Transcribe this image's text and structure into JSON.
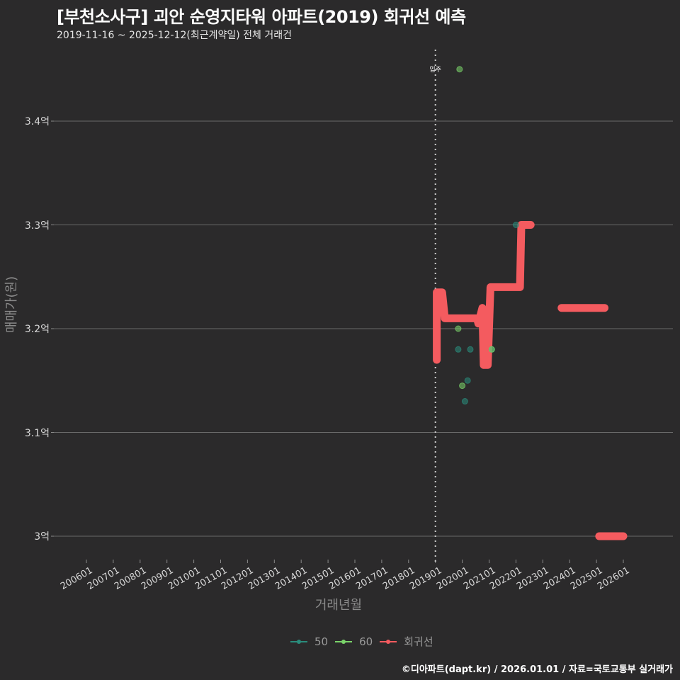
{
  "header": {
    "title": "[부천소사구] 괴안 순영지타워 아파트(2019) 회귀선 예측",
    "subtitle": "2019-11-16 ~ 2025-12-12(최근계약일) 전체 거래건"
  },
  "axes": {
    "ylabel": "매매가(원)",
    "xlabel": "거래년월",
    "yticks": [
      {
        "label": "3.4억",
        "value": 3.4
      },
      {
        "label": "3.3억",
        "value": 3.3
      },
      {
        "label": "3.2억",
        "value": 3.2
      },
      {
        "label": "3.1억",
        "value": 3.1
      },
      {
        "label": "3억",
        "value": 3.0
      }
    ],
    "xticks": [
      "200601",
      "200701",
      "200801",
      "200901",
      "201001",
      "201101",
      "201201",
      "201301",
      "201401",
      "201501",
      "201601",
      "201701",
      "201801",
      "201901",
      "202001",
      "202101",
      "202201",
      "202301",
      "202401",
      "202501",
      "202601"
    ]
  },
  "annotation": {
    "label": "입주",
    "x": 2019.0
  },
  "legend": [
    {
      "label": "50",
      "color": "#2a8c7c"
    },
    {
      "label": "60",
      "color": "#7ad36a"
    },
    {
      "label": "회귀선",
      "color": "#f45b5f"
    }
  ],
  "caption": "©디아파트(dapt.kr) / 2026.01.01 / 자료=국토교통부 실거래가",
  "chart_data": {
    "type": "scatter",
    "title": "[부천소사구] 괴안 순영지타워 아파트(2019) 회귀선 예측",
    "subtitle": "2019-11-16 ~ 2025-12-12(최근계약일) 전체 거래건",
    "xlabel": "거래년월",
    "ylabel": "매매가(원)",
    "xlim": [
      2005.4,
      2027.2
    ],
    "ylim": [
      2.98,
      3.46
    ],
    "y_unit": "억",
    "grid": true,
    "legend_position": "bottom",
    "vline": {
      "x": 2019.0,
      "label": "입주",
      "style": "dotted"
    },
    "series": [
      {
        "name": "50",
        "type": "scatter",
        "color": "#2a8c7c",
        "points": [
          [
            2019.85,
            3.18
          ],
          [
            2020.1,
            3.13
          ],
          [
            2020.2,
            3.15
          ],
          [
            2020.3,
            3.18
          ],
          [
            2021.1,
            3.18
          ],
          [
            2022.0,
            3.3
          ]
        ]
      },
      {
        "name": "60",
        "type": "scatter",
        "color": "#7ad36a",
        "points": [
          [
            2019.9,
            3.45
          ],
          [
            2019.85,
            3.2
          ],
          [
            2021.1,
            3.18
          ],
          [
            2020.0,
            3.145
          ]
        ]
      },
      {
        "name": "회귀선",
        "type": "line",
        "color": "#f45b5f",
        "points": [
          [
            2019.05,
            3.17
          ],
          [
            2019.05,
            3.235
          ],
          [
            2019.25,
            3.235
          ],
          [
            2019.35,
            3.21
          ],
          [
            2020.55,
            3.21
          ],
          [
            2020.6,
            3.205
          ],
          [
            2020.75,
            3.22
          ],
          [
            2020.8,
            3.165
          ],
          [
            2020.95,
            3.165
          ],
          [
            2021.05,
            3.24
          ],
          [
            2022.15,
            3.24
          ],
          [
            2022.2,
            3.3
          ],
          [
            2022.55,
            3.3
          ]
        ]
      },
      {
        "name": "회귀선-2",
        "type": "line",
        "color": "#f45b5f",
        "points": [
          [
            2023.7,
            3.22
          ],
          [
            2025.3,
            3.22
          ]
        ]
      },
      {
        "name": "회귀선-3",
        "type": "line",
        "color": "#f45b5f",
        "points": [
          [
            2025.1,
            3.0
          ],
          [
            2026.0,
            3.0
          ]
        ]
      }
    ]
  }
}
